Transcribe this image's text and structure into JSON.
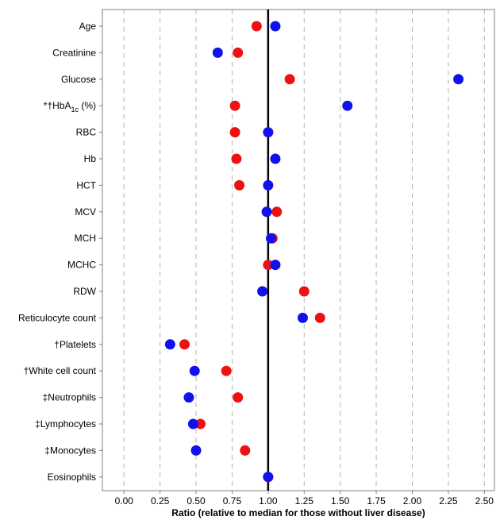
{
  "chart_data": {
    "type": "scatter",
    "title": "",
    "xlabel": "Ratio (relative to median for those without liver disease)",
    "ylabel": "",
    "xlim": [
      -0.15,
      2.57
    ],
    "xticks": [
      "0.00",
      "0.25",
      "0.50",
      "0.75",
      "1.00",
      "1.25",
      "1.50",
      "1.75",
      "2.00",
      "2.25",
      "2.50"
    ],
    "xtick_values": [
      0,
      0.25,
      0.5,
      0.75,
      1.0,
      1.25,
      1.5,
      1.75,
      2.0,
      2.25,
      2.5
    ],
    "reference_line": 1.0,
    "grid": "vertical dashed",
    "legend": "none",
    "categories": [
      {
        "prefix": "",
        "label": "Age"
      },
      {
        "prefix": "",
        "label": "Creatinine"
      },
      {
        "prefix": "",
        "label": "Glucose"
      },
      {
        "prefix": "*†",
        "label": "HbA",
        "sub": "1c",
        "suffix": " (%)"
      },
      {
        "prefix": "",
        "label": "RBC"
      },
      {
        "prefix": "",
        "label": "Hb"
      },
      {
        "prefix": "",
        "label": "HCT"
      },
      {
        "prefix": "",
        "label": "MCV"
      },
      {
        "prefix": "",
        "label": "MCH"
      },
      {
        "prefix": "",
        "label": "MCHC"
      },
      {
        "prefix": "",
        "label": "RDW"
      },
      {
        "prefix": "",
        "label": "Reticulocyte count"
      },
      {
        "prefix": "†",
        "label": "Platelets"
      },
      {
        "prefix": "†",
        "label": "White cell count"
      },
      {
        "prefix": "‡",
        "label": "Neutrophils"
      },
      {
        "prefix": "‡",
        "label": "Lymphocytes"
      },
      {
        "prefix": "‡",
        "label": "Monocytes"
      },
      {
        "prefix": "",
        "label": "Eosinophils"
      }
    ],
    "series": [
      {
        "color": "#ee1111",
        "values": [
          0.92,
          0.79,
          1.15,
          0.77,
          0.77,
          0.78,
          0.8,
          1.06,
          1.03,
          1.0,
          1.25,
          1.36,
          0.42,
          0.71,
          0.79,
          0.53,
          0.84,
          1.0
        ]
      },
      {
        "color": "#1111ee",
        "values": [
          1.05,
          0.65,
          2.32,
          1.55,
          1.0,
          1.05,
          1.0,
          0.99,
          1.02,
          1.05,
          0.96,
          1.24,
          0.32,
          0.49,
          0.45,
          0.48,
          0.5,
          1.0
        ]
      }
    ]
  }
}
